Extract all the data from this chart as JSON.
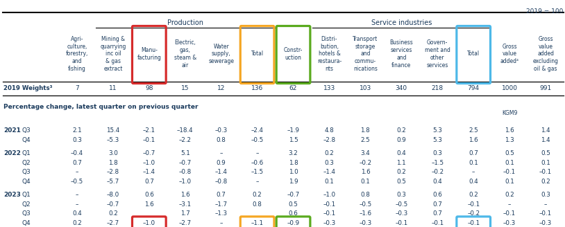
{
  "title_right": "2019 = 100",
  "section_production": "Production",
  "section_service": "Service industries",
  "col_headers": [
    "Agri-\nculture,\nforestry,\nand\nfishing",
    "Mining &\nquarrying\ninc oil\n& gas\nextract",
    "Manu-\nfacturing",
    "Electric,\ngas,\nsteam &\nair",
    "Water\nsupply,\nsewerage",
    "Total",
    "Constr-\nuction",
    "Distri-\nbution,\nhotels &\nrestaura-\nnts",
    "Transport\nstorage\nand\ncommu-\nnications",
    "Business\nservices\nand\nfinance",
    "Govern-\nment and\nother\nservices",
    "Total",
    "Gross\nvalue\nadded⁴",
    "Gross\nvalue\nadded\nexcluding\noil & gas"
  ],
  "weights_label": "2019 Weights³",
  "weights": [
    "7",
    "11",
    "98",
    "15",
    "12",
    "136",
    "62",
    "133",
    "103",
    "340",
    "218",
    "794",
    "1000",
    "991"
  ],
  "pct_label": "Percentage change, latest quarter on previous quarter",
  "kgm9_label": "KGM9",
  "rows": [
    {
      "year": "2021",
      "quarter": "Q3",
      "vals": [
        "2.1",
        "15.4",
        "–2.1",
        "–18.4",
        "–0.3",
        "–2.4",
        "–1.9",
        "4.8",
        "1.8",
        "0.2",
        "5.3",
        "2.5",
        "1.6",
        "1.4"
      ]
    },
    {
      "year": "",
      "quarter": "Q4",
      "vals": [
        "0.3",
        "–5.3",
        "–0.1",
        "–2.2",
        "0.8",
        "–0.5",
        "1.5",
        "–2.8",
        "2.5",
        "0.9",
        "5.3",
        "1.6",
        "1.3",
        "1.4"
      ]
    },
    {
      "year": "2022",
      "quarter": "Q1",
      "vals": [
        "–0.4",
        "3.0",
        "–0.7",
        "5.1",
        "–",
        "–",
        "3.2",
        "0.2",
        "3.4",
        "0.4",
        "0.3",
        "0.7",
        "0.5",
        "0.5"
      ]
    },
    {
      "year": "",
      "quarter": "Q2",
      "vals": [
        "0.7",
        "1.8",
        "–1.0",
        "–0.7",
        "0.9",
        "–0.6",
        "1.8",
        "0.3",
        "–0.2",
        "1.1",
        "–1.5",
        "0.1",
        "0.1",
        "0.1"
      ]
    },
    {
      "year": "",
      "quarter": "Q3",
      "vals": [
        "–",
        "–2.8",
        "–1.4",
        "–0.8",
        "–1.4",
        "–1.5",
        "1.0",
        "–1.4",
        "1.6",
        "0.2",
        "–0.2",
        "–",
        "–0.1",
        "–0.1"
      ]
    },
    {
      "year": "",
      "quarter": "Q4",
      "vals": [
        "–0.5",
        "–5.7",
        "0.7",
        "–1.0",
        "–0.8",
        "–",
        "1.9",
        "0.1",
        "0.1",
        "0.5",
        "0.4",
        "0.4",
        "0.1",
        "0.2"
      ]
    },
    {
      "year": "2023",
      "quarter": "Q1",
      "vals": [
        "–",
        "–8.0",
        "0.6",
        "1.6",
        "0.7",
        "0.2",
        "–0.7",
        "–1.0",
        "0.8",
        "0.3",
        "0.6",
        "0.2",
        "0.2",
        "0.3"
      ]
    },
    {
      "year": "",
      "quarter": "Q2",
      "vals": [
        "–",
        "–0.7",
        "1.6",
        "–3.1",
        "–1.7",
        "0.8",
        "0.5",
        "–0.1",
        "–0.5",
        "–0.5",
        "0.7",
        "–0.1",
        "–",
        "–"
      ]
    },
    {
      "year": "",
      "quarter": "Q3",
      "vals": [
        "0.4",
        "0.2",
        "",
        "1.7",
        "–1.3",
        "",
        "0.6",
        "–0.1",
        "–1.6",
        "–0.3",
        "0.7",
        "–0.2",
        "–0.1",
        "–0.1"
      ]
    },
    {
      "year": "",
      "quarter": "Q4",
      "vals": [
        "0.2",
        "–2.7",
        "–1.0",
        "–2.7",
        "–",
        "–1.1",
        "–0.9",
        "–0.3",
        "–0.3",
        "–0.1",
        "–0.1",
        "–0.1",
        "–0.3",
        "–0.3"
      ]
    }
  ],
  "box_specs": [
    {
      "col": 2,
      "color": "#d62b2b"
    },
    {
      "col": 5,
      "color": "#f5a623"
    },
    {
      "col": 6,
      "color": "#5aaa1e"
    },
    {
      "col": 11,
      "color": "#4db8e8"
    }
  ],
  "text_color": "#1a3a5c",
  "bg_color": "#ffffff"
}
